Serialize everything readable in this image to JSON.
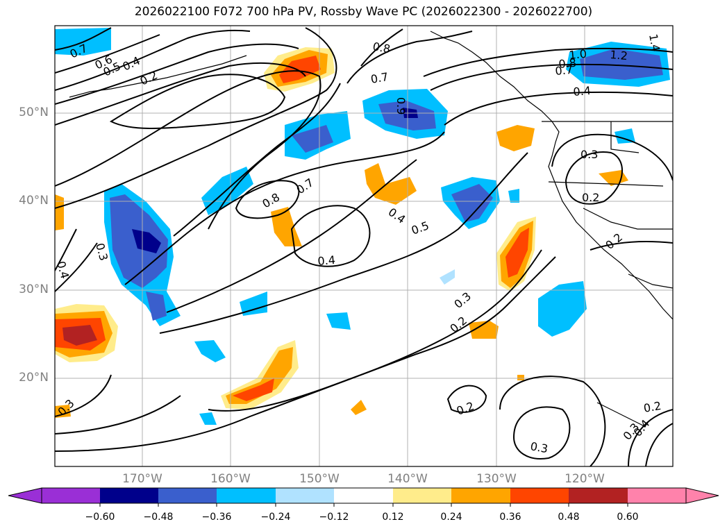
{
  "title": "2026022100 F072 700 hPa PV, Rossby Wave PC (2026022300 - 2026022700)",
  "lat_labels": [
    "50°N",
    "40°N",
    "30°N",
    "20°N"
  ],
  "lon_labels": [
    "170°W",
    "160°W",
    "150°W",
    "140°W",
    "130°W",
    "120°W"
  ],
  "colorbar": {
    "colors": [
      "#9a2fd6",
      "#00008b",
      "#3a5fcd",
      "#00bfff",
      "#b0e2ff",
      "#ffffff",
      "#ffec8b",
      "#ffa500",
      "#ff4500",
      "#b22222",
      "#ff82ab"
    ],
    "tick_labels": [
      "−0.60",
      "−0.48",
      "−0.36",
      "−0.24",
      "−0.12",
      "0.12",
      "0.24",
      "0.36",
      "0.48",
      "0.60"
    ]
  },
  "contour_labels": [
    "0.7",
    "0.6",
    "0.5",
    "0.4",
    "0.2",
    "0.8",
    "0.7",
    "0.9",
    "1.0",
    "1.2",
    "1.4",
    "0.8",
    "0.7",
    "0.4",
    "0.8",
    "0.7",
    "0.4",
    "0.5",
    "0.3",
    "0.2",
    "0.4",
    "0.3",
    "0.4",
    "0.3",
    "0.2",
    "0.2",
    "0.3",
    "0.2",
    "0.3",
    "0.4",
    "0.3",
    "0.2"
  ]
}
